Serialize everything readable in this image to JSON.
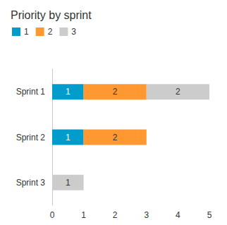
{
  "chart_data": {
    "type": "bar",
    "title": "Priority by sprint",
    "orientation": "horizontal",
    "stacked": true,
    "data_labels": true,
    "grid": false,
    "legend": "top-left",
    "categories": [
      "Sprint 1",
      "Sprint 2",
      "Sprint 3"
    ],
    "series": [
      {
        "name": "1",
        "color": "#009ccc",
        "values": [
          1,
          1,
          null
        ]
      },
      {
        "name": "2",
        "color": "#ff9830",
        "values": [
          2,
          2,
          null
        ]
      },
      {
        "name": "3",
        "color": "#cccccc",
        "values": [
          2,
          null,
          1
        ]
      }
    ],
    "xlim": [
      0,
      5
    ],
    "xticks": [
      0,
      1,
      2,
      3,
      4,
      5
    ]
  }
}
